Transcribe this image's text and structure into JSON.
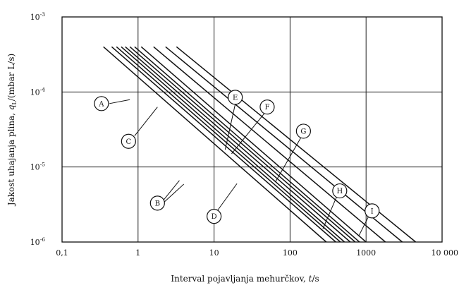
{
  "chart_data": {
    "type": "line",
    "title": "",
    "x_scale": "log",
    "y_scale": "log",
    "xlim": [
      0.1,
      10000
    ],
    "ylim": [
      1e-06,
      0.001
    ],
    "grid": true,
    "xlabel": {
      "prefix": "Interval pojavljanja mehurčkov, ",
      "var": "t",
      "unit": "/s"
    },
    "ylabel": {
      "prefix": "Jakost uhajanja plina, ",
      "var": "q",
      "sub": "L",
      "unit": "/(mbar L/s)"
    },
    "x_ticks": [
      {
        "value": 0.1,
        "label": "0,1"
      },
      {
        "value": 1,
        "label": "1"
      },
      {
        "value": 10,
        "label": "10"
      },
      {
        "value": 100,
        "label": "100"
      },
      {
        "value": 1000,
        "label": "1000"
      },
      {
        "value": 10000,
        "label": "10 000"
      }
    ],
    "y_ticks": [
      {
        "value": 1e-06,
        "base": "10",
        "exp": "-6"
      },
      {
        "value": 1e-05,
        "base": "10",
        "exp": "-5"
      },
      {
        "value": 0.0001,
        "base": "10",
        "exp": "-4"
      },
      {
        "value": 0.001,
        "base": "10",
        "exp": "-3"
      }
    ],
    "series": [
      {
        "id": "A",
        "points": [
          [
            0.35,
            0.0004
          ],
          [
            300.0,
            1e-06
          ]
        ]
      },
      {
        "id": "B1",
        "points": [
          [
            0.45,
            0.0004
          ],
          [
            400.0,
            1e-06
          ]
        ]
      },
      {
        "id": "B2",
        "points": [
          [
            0.52,
            0.0004
          ],
          [
            460.0,
            1e-06
          ]
        ]
      },
      {
        "id": "C",
        "points": [
          [
            0.6,
            0.0004
          ],
          [
            520.0,
            1e-06
          ]
        ]
      },
      {
        "id": "D",
        "points": [
          [
            0.68,
            0.0004
          ],
          [
            620.0,
            1e-06
          ]
        ]
      },
      {
        "id": "E",
        "points": [
          [
            0.78,
            0.0004
          ],
          [
            720.0,
            1e-06
          ]
        ]
      },
      {
        "id": "F",
        "points": [
          [
            0.9,
            0.0004
          ],
          [
            820.0,
            1e-06
          ]
        ]
      },
      {
        "id": "G",
        "points": [
          [
            1.1,
            0.0004
          ],
          [
            1000.0,
            1e-06
          ]
        ]
      },
      {
        "id": "H",
        "points": [
          [
            1.6,
            0.0004
          ],
          [
            1800.0,
            1e-06
          ]
        ]
      },
      {
        "id": "I1",
        "points": [
          [
            2.3,
            0.0004
          ],
          [
            3000.0,
            1e-06
          ]
        ]
      },
      {
        "id": "I2",
        "points": [
          [
            3.2,
            0.0004
          ],
          [
            4500.0,
            1e-06
          ]
        ]
      }
    ],
    "callouts": [
      {
        "label": "A",
        "circle": [
          0.33,
          7e-05
        ],
        "leaders": [
          [
            [
              0.42,
              7e-05
            ],
            [
              0.78,
              7.9e-05
            ]
          ]
        ]
      },
      {
        "label": "C",
        "circle": [
          0.75,
          2.2e-05
        ],
        "leaders": [
          [
            [
              0.9,
              2.6e-05
            ],
            [
              1.8,
              6.3e-05
            ]
          ]
        ]
      },
      {
        "label": "E",
        "circle": [
          19,
          8.5e-05
        ],
        "leaders": [
          [
            [
              19,
              6.9e-05
            ],
            [
              14,
              1.7e-05
            ]
          ]
        ]
      },
      {
        "label": "F",
        "circle": [
          50,
          6.3e-05
        ],
        "leaders": [
          [
            [
              46,
              5.2e-05
            ],
            [
              17,
              1.5e-05
            ]
          ]
        ]
      },
      {
        "label": "G",
        "circle": [
          150,
          3e-05
        ],
        "leaders": [
          [
            [
              140,
              2.5e-05
            ],
            [
              64,
              6.3e-06
            ]
          ]
        ]
      },
      {
        "label": "B",
        "circle": [
          1.8,
          3.3e-06
        ],
        "leaders": [
          [
            [
              2.2,
              3.7e-06
            ],
            [
              3.5,
              6.6e-06
            ]
          ],
          [
            [
              2.2,
              3.4e-06
            ],
            [
              4.0,
              5.9e-06
            ]
          ]
        ]
      },
      {
        "label": "D",
        "circle": [
          10,
          2.2e-06
        ],
        "leaders": [
          [
            [
              11,
              2.6e-06
            ],
            [
              20,
              6e-06
            ]
          ]
        ]
      },
      {
        "label": "H",
        "circle": [
          450,
          4.8e-06
        ],
        "leaders": [
          [
            [
              410,
              4e-06
            ],
            [
              270,
              1.5e-06
            ]
          ]
        ]
      },
      {
        "label": "I",
        "circle": [
          1200,
          2.6e-06
        ],
        "leaders": [
          [
            [
              1080,
              2.2e-06
            ],
            [
              800,
              1.2e-06
            ]
          ]
        ]
      }
    ]
  }
}
